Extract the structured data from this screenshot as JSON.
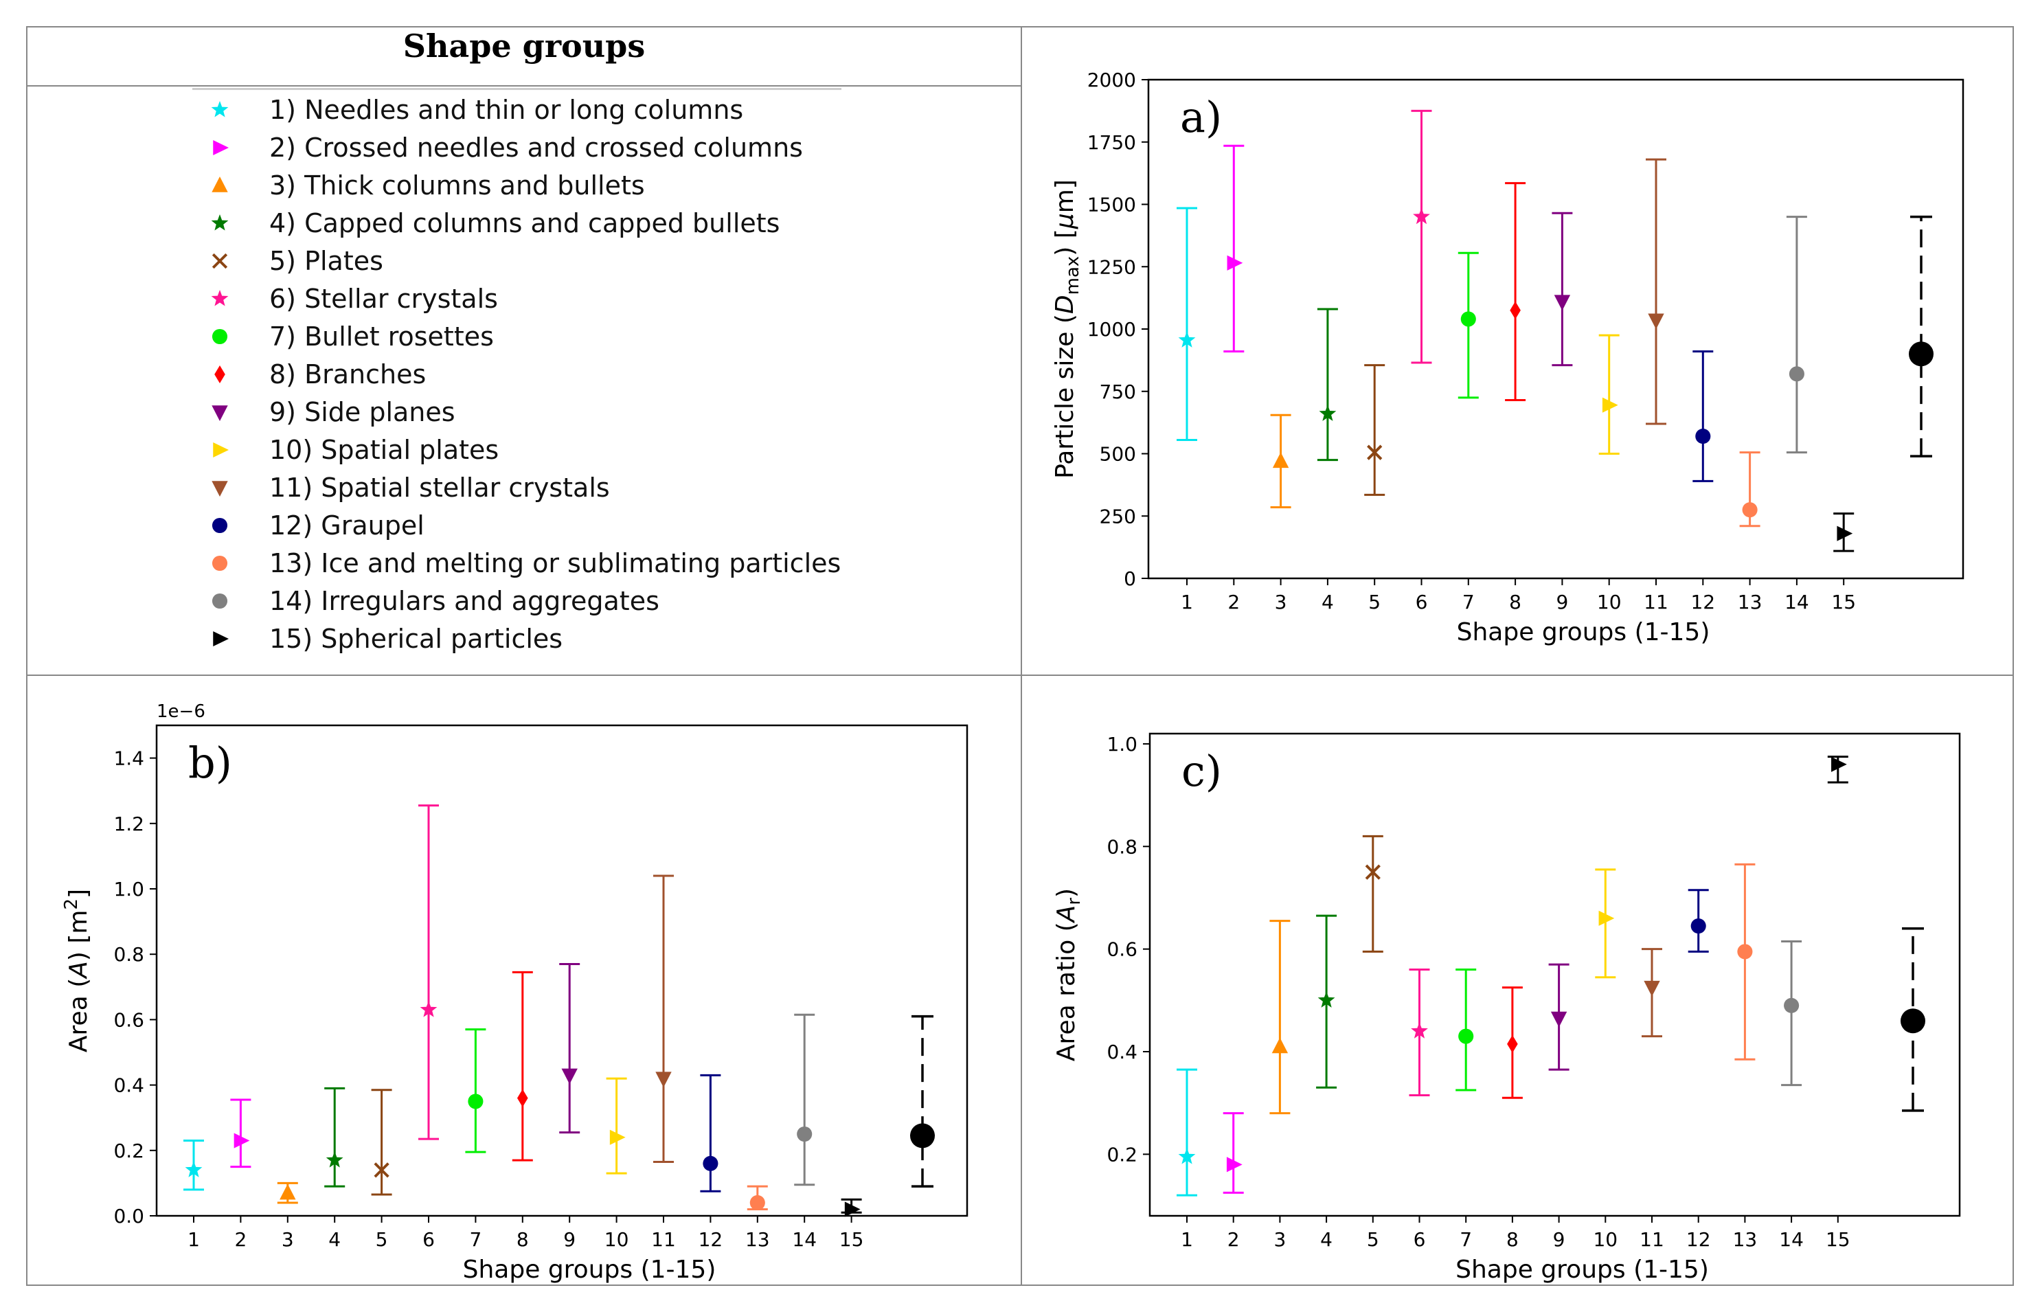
{
  "legend": {
    "title": "Shape groups",
    "items": [
      {
        "label": "1) Needles and thin or long columns",
        "marker": "star",
        "color": "#00e5ee"
      },
      {
        "label": "2) Crossed needles and crossed columns",
        "marker": "tri-right",
        "color": "#ff00ff"
      },
      {
        "label": "3) Thick columns and bullets",
        "marker": "tri-up",
        "color": "#ff8c00"
      },
      {
        "label": "4) Capped columns and capped bullets",
        "marker": "star",
        "color": "#007a00"
      },
      {
        "label": "5) Plates",
        "marker": "x",
        "color": "#8b4513"
      },
      {
        "label": "6) Stellar crystals",
        "marker": "star",
        "color": "#ff1493"
      },
      {
        "label": "7) Bullet rosettes",
        "marker": "circle",
        "color": "#00ee00"
      },
      {
        "label": "8) Branches",
        "marker": "diamond",
        "color": "#ff0000"
      },
      {
        "label": "9) Side planes",
        "marker": "tri-down",
        "color": "#800080"
      },
      {
        "label": "10) Spatial plates",
        "marker": "tri-right",
        "color": "#ffd700"
      },
      {
        "label": "11) Spatial stellar crystals",
        "marker": "tri-down",
        "color": "#a0522d"
      },
      {
        "label": "12) Graupel",
        "marker": "circle",
        "color": "#000080"
      },
      {
        "label": "13) Ice and melting or sublimating particles",
        "marker": "circle",
        "color": "#ff7f50"
      },
      {
        "label": "14) Irregulars and aggregates",
        "marker": "circle",
        "color": "#808080"
      },
      {
        "label": "15) Spherical particles",
        "marker": "tri-right",
        "color": "#000000"
      }
    ]
  },
  "chart_data": [
    {
      "id": "a",
      "type": "scatter",
      "letter": "a)",
      "xlabel": "Shape groups (1-15)",
      "ylabel": "Particle size (D_max) [μm]",
      "ylabel_parts": {
        "pre": "Particle size (",
        "var": "D",
        "sub": "max",
        "post": ") [",
        "mu": "μ",
        "unit": "m]"
      },
      "ylim": [
        0,
        2000
      ],
      "yticks": [
        0,
        250,
        500,
        750,
        1000,
        1250,
        1500,
        1750,
        2000
      ],
      "ytick_labels": [
        "0",
        "250",
        "500",
        "750",
        "1000",
        "1250",
        "1500",
        "1750",
        "2000"
      ],
      "x_tick_labels": [
        "1",
        "2",
        "3",
        "4",
        "5",
        "6",
        "7",
        "8",
        "9",
        "10",
        "11",
        "12",
        "13",
        "14",
        "15"
      ],
      "values": [
        955,
        1265,
        470,
        660,
        505,
        1450,
        1040,
        1075,
        1110,
        695,
        1035,
        570,
        275,
        820,
        180
      ],
      "lower": [
        555,
        910,
        285,
        475,
        335,
        865,
        725,
        715,
        855,
        500,
        620,
        390,
        210,
        505,
        110
      ],
      "upper": [
        1485,
        1735,
        655,
        1080,
        855,
        1875,
        1305,
        1585,
        1465,
        975,
        1680,
        910,
        505,
        1450,
        260
      ],
      "overall": {
        "value": 900,
        "lower": 490,
        "upper": 1450
      }
    },
    {
      "id": "b",
      "type": "scatter",
      "letter": "b)",
      "xlabel": "Shape groups (1-15)",
      "ylabel": "Area (A) [m²]",
      "ylabel_parts": {
        "pre": "Area (",
        "var": "A",
        "post": ") [m",
        "sup": "2",
        "end": "]"
      },
      "scale_label": "1e−6",
      "ylim": [
        0,
        1.5
      ],
      "yticks": [
        0,
        0.2,
        0.4,
        0.6,
        0.8,
        1.0,
        1.2,
        1.4
      ],
      "ytick_labels": [
        "0.0",
        "0.2",
        "0.4",
        "0.6",
        "0.8",
        "1.0",
        "1.2",
        "1.4"
      ],
      "x_tick_labels": [
        "1",
        "2",
        "3",
        "4",
        "5",
        "6",
        "7",
        "8",
        "9",
        "10",
        "11",
        "12",
        "13",
        "14",
        "15"
      ],
      "values": [
        0.14,
        0.23,
        0.07,
        0.17,
        0.14,
        0.63,
        0.35,
        0.36,
        0.43,
        0.24,
        0.42,
        0.16,
        0.04,
        0.25,
        0.02
      ],
      "lower": [
        0.08,
        0.15,
        0.04,
        0.09,
        0.065,
        0.235,
        0.195,
        0.17,
        0.255,
        0.13,
        0.165,
        0.075,
        0.02,
        0.095,
        0.01
      ],
      "upper": [
        0.23,
        0.355,
        0.1,
        0.39,
        0.385,
        1.255,
        0.57,
        0.745,
        0.77,
        0.42,
        1.04,
        0.43,
        0.09,
        0.615,
        0.05
      ],
      "overall": {
        "value": 0.245,
        "lower": 0.09,
        "upper": 0.61
      }
    },
    {
      "id": "c",
      "type": "scatter",
      "letter": "c)",
      "xlabel": "Shape groups (1-15)",
      "ylabel": "Area ratio (A_r)",
      "ylabel_parts": {
        "pre": "Area ratio (",
        "var": "A",
        "sub": "r",
        "post": ")"
      },
      "ylim": [
        0.08,
        1.02
      ],
      "yticks": [
        0.2,
        0.4,
        0.6,
        0.8,
        1.0
      ],
      "ytick_labels": [
        "0.2",
        "0.4",
        "0.6",
        "0.8",
        "1.0"
      ],
      "x_tick_labels": [
        "1",
        "2",
        "3",
        "4",
        "5",
        "6",
        "7",
        "8",
        "9",
        "10",
        "11",
        "12",
        "13",
        "14",
        "15"
      ],
      "values": [
        0.195,
        0.18,
        0.41,
        0.5,
        0.75,
        0.44,
        0.43,
        0.415,
        0.465,
        0.66,
        0.525,
        0.645,
        0.595,
        0.49,
        0.96
      ],
      "lower": [
        0.12,
        0.125,
        0.28,
        0.33,
        0.595,
        0.315,
        0.325,
        0.31,
        0.365,
        0.545,
        0.43,
        0.595,
        0.385,
        0.335,
        0.925
      ],
      "upper": [
        0.365,
        0.28,
        0.655,
        0.665,
        0.82,
        0.56,
        0.56,
        0.525,
        0.57,
        0.755,
        0.6,
        0.715,
        0.765,
        0.615,
        0.975
      ],
      "overall": {
        "value": 0.46,
        "lower": 0.285,
        "upper": 0.64
      }
    }
  ]
}
